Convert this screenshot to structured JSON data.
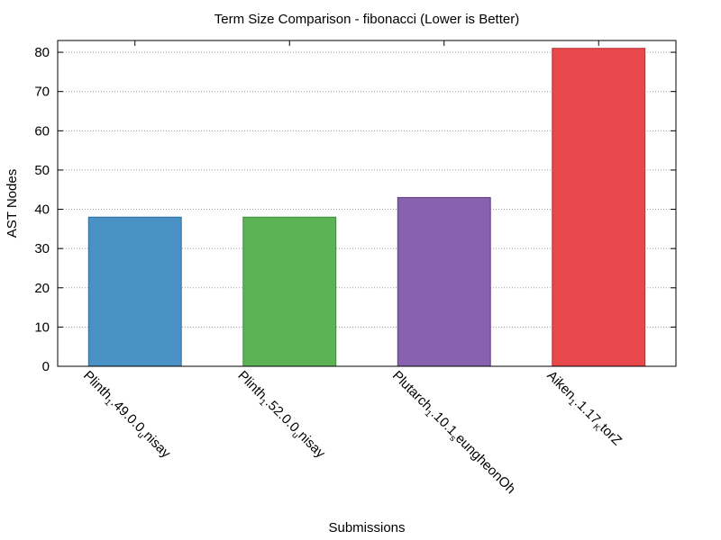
{
  "chart_data": {
    "type": "bar",
    "title": "Term Size Comparison - fibonacci (Lower is Better)",
    "xlabel": "Submissions",
    "ylabel": "AST Nodes",
    "ylim": [
      0,
      83
    ],
    "yticks": [
      0,
      10,
      20,
      30,
      40,
      50,
      60,
      70,
      80
    ],
    "grid": "horizontal dotted",
    "categories": [
      "Plinth_1.49.0.0_unisay",
      "Plinth_1.52.0.0_unisay",
      "Plutarch_1.10.1_seungheonOh",
      "Aiken_1.1.17_KtorZ"
    ],
    "category_display": [
      {
        "pre": "Plinth",
        "sub": "1",
        "mid": ".49.0.0",
        "sub2": "u",
        "post": "nisay"
      },
      {
        "pre": "Plinth",
        "sub": "1",
        "mid": ".52.0.0",
        "sub2": "u",
        "post": "nisay"
      },
      {
        "pre": "Plutarch",
        "sub": "1",
        "mid": ".10.1",
        "sub2": "s",
        "post": "eungheonOh"
      },
      {
        "pre": "Aiken",
        "sub": "1",
        "mid": ".1.17",
        "sub2": "K",
        "post": "torZ"
      }
    ],
    "values": [
      38,
      38,
      43,
      81
    ],
    "colors": [
      "#4a92c6",
      "#5cb356",
      "#8862af",
      "#e8474c"
    ],
    "borders": [
      "#2e6f9e",
      "#3c8c37",
      "#5e3f86",
      "#b52f33"
    ]
  }
}
